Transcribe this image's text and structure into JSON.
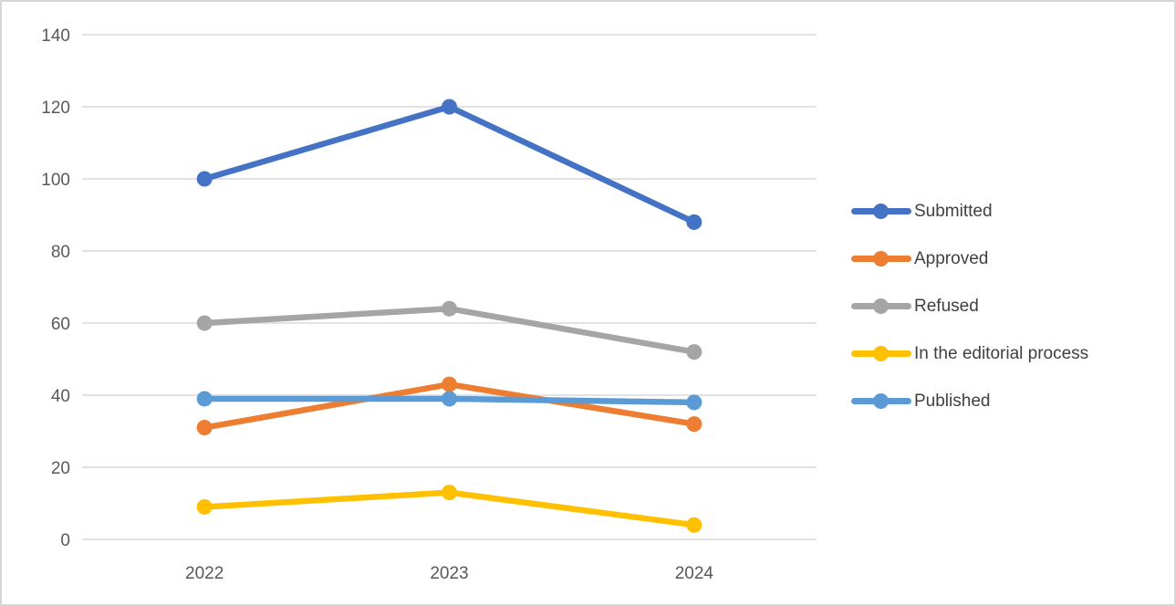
{
  "chart_data": {
    "type": "line",
    "title": "",
    "xlabel": "",
    "ylabel": "",
    "categories": [
      "2022",
      "2023",
      "2024"
    ],
    "series": [
      {
        "name": "Submitted",
        "values": [
          100,
          120,
          88
        ],
        "color": "#4472C4"
      },
      {
        "name": "Approved",
        "values": [
          31,
          43,
          32
        ],
        "color": "#ED7D31"
      },
      {
        "name": "Refused",
        "values": [
          60,
          64,
          52
        ],
        "color": "#A5A5A5"
      },
      {
        "name": "In the editorial process",
        "values": [
          9,
          13,
          4
        ],
        "color": "#FFC000"
      },
      {
        "name": "Published",
        "values": [
          39,
          39,
          38
        ],
        "color": "#5B9BD5"
      }
    ],
    "ylim": [
      0,
      140
    ],
    "yticks": [
      0,
      20,
      40,
      60,
      80,
      100,
      120,
      140
    ],
    "grid": true,
    "marker": "circle",
    "legend_position": "right",
    "colors": {
      "gridline": "#D9D9D9",
      "axis_tick_label": "#595959",
      "legend_label": "#404040",
      "background": "#FFFFFF",
      "frame_border": "#D6D6D6"
    }
  }
}
